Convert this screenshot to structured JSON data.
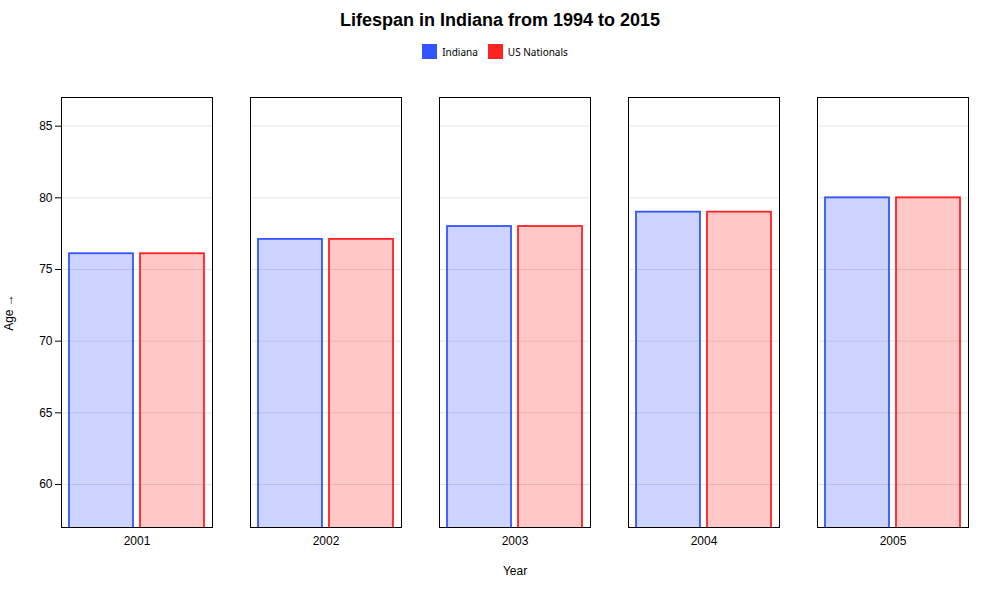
{
  "chart_data": {
    "type": "bar",
    "title": "Lifespan in Indiana from 1994 to 2015",
    "xlabel": "Year",
    "ylabel": "Age",
    "categories": [
      "2001",
      "2002",
      "2003",
      "2004",
      "2005"
    ],
    "series": [
      {
        "name": "Indiana",
        "color": "#3355ff",
        "values": [
          76.1,
          77.1,
          78.0,
          79.0,
          80.0
        ]
      },
      {
        "name": "US Nationals",
        "color": "#ff2222",
        "values": [
          76.1,
          77.1,
          78.0,
          79.0,
          80.0
        ]
      }
    ],
    "ylim": [
      57,
      87
    ],
    "yticks": [
      60,
      65,
      70,
      75,
      80,
      85
    ],
    "grid": true,
    "legend": "top"
  }
}
